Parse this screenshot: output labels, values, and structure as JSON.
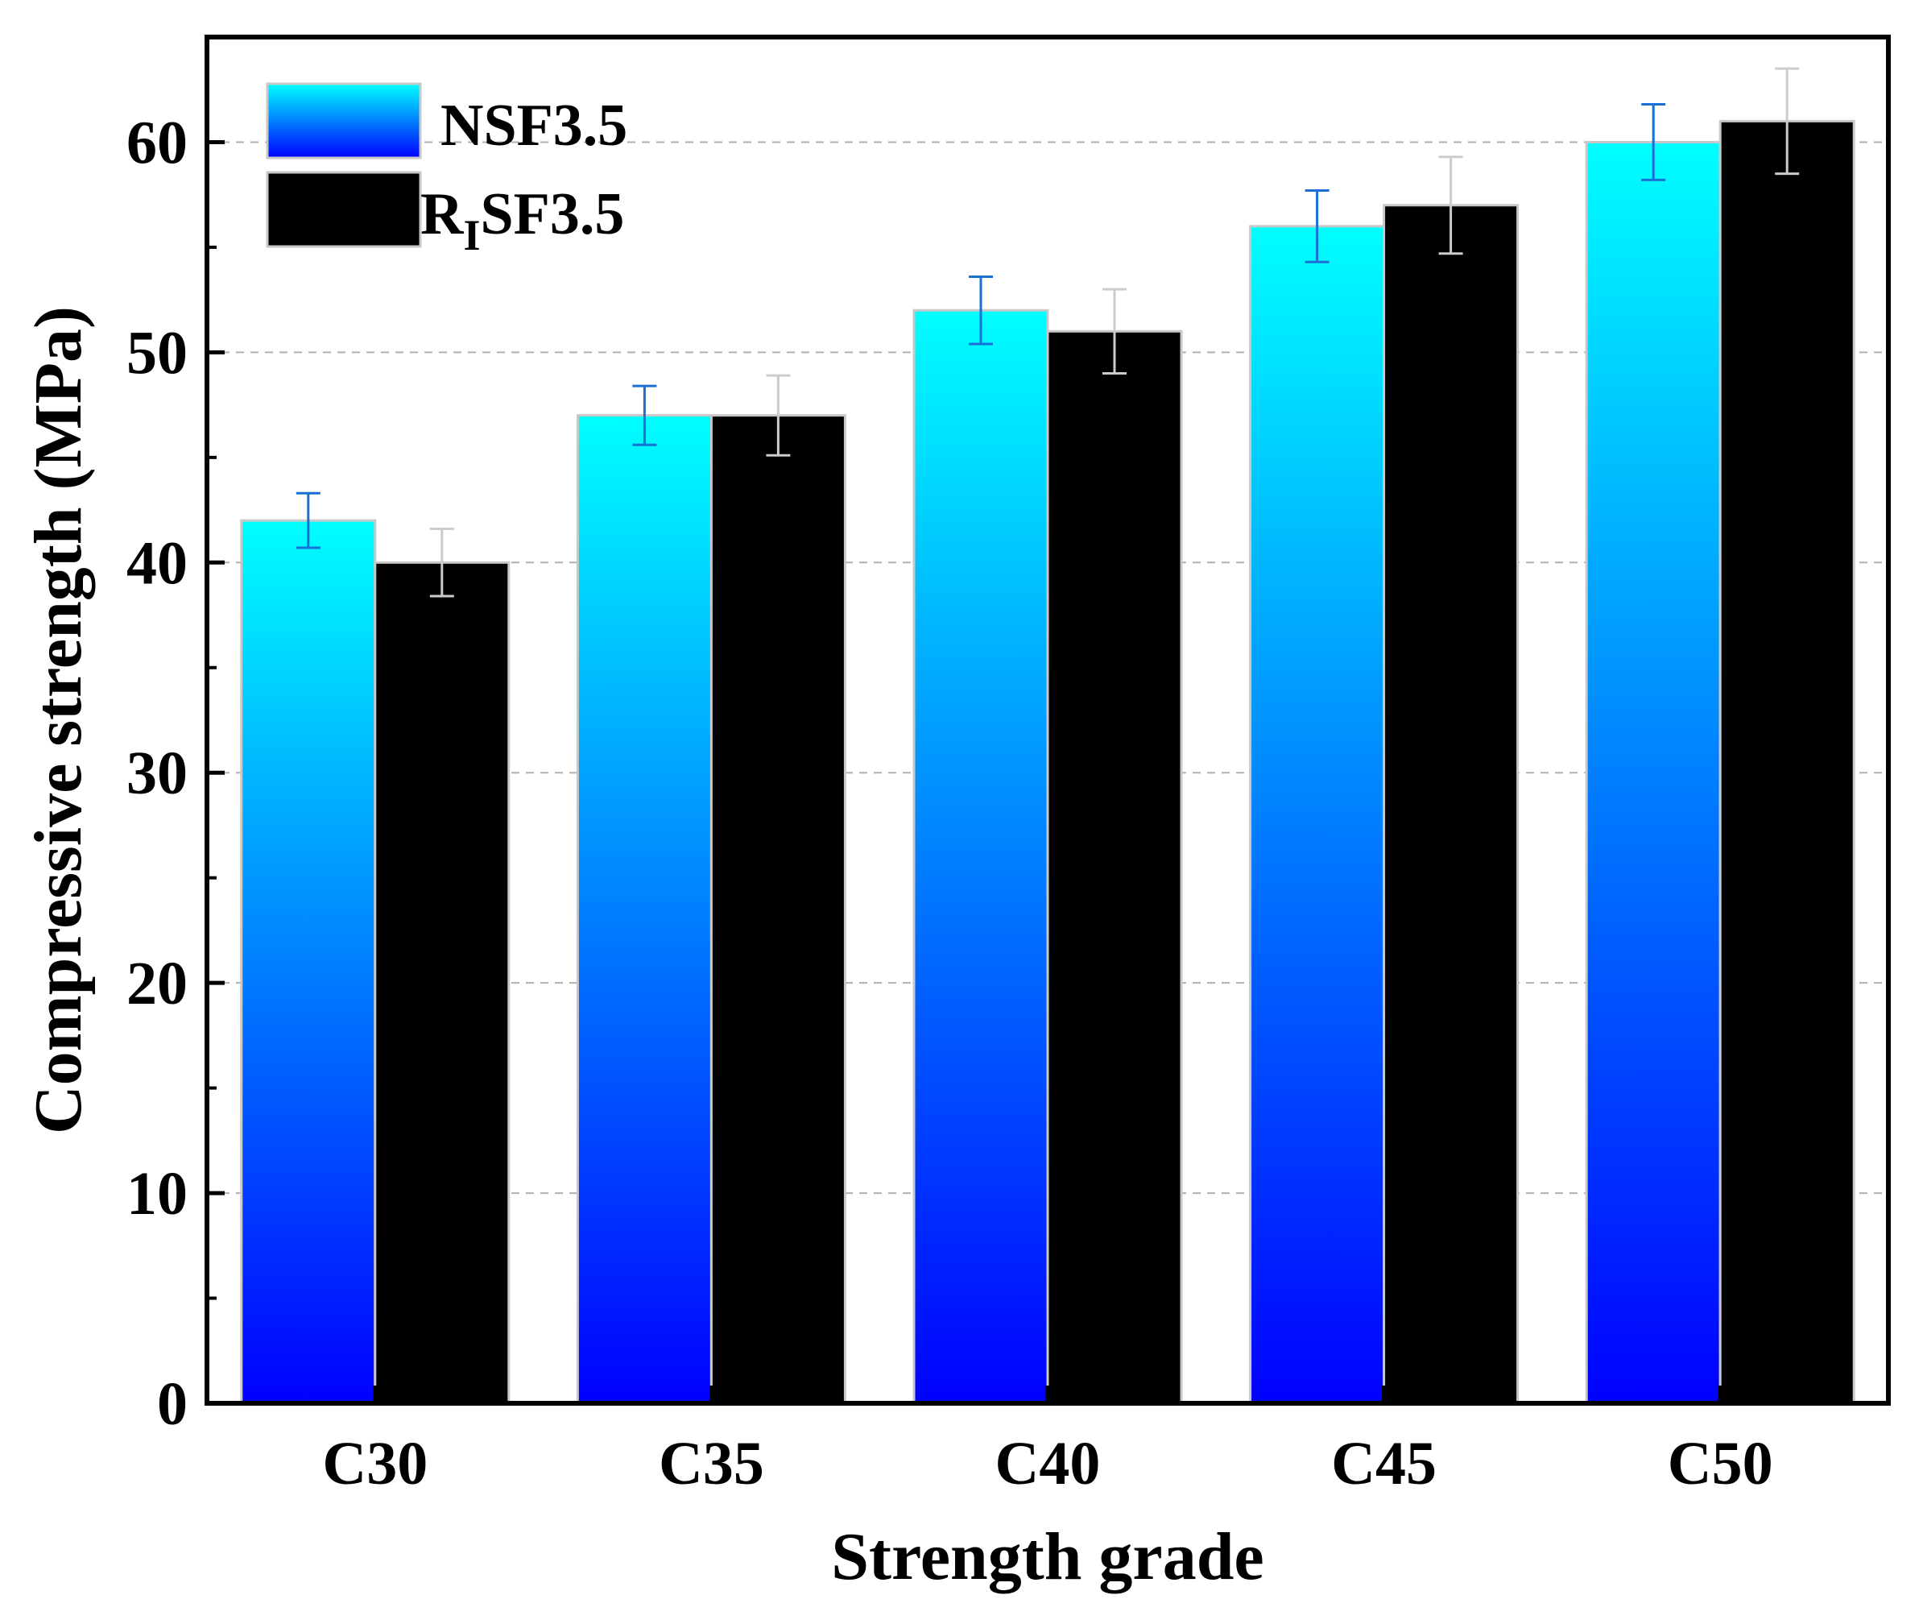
{
  "chart_data": {
    "type": "bar",
    "categories": [
      "C30",
      "C35",
      "C40",
      "C45",
      "C50"
    ],
    "series": [
      {
        "name": "NSF3.5",
        "values": [
          42,
          47,
          52,
          56,
          60
        ],
        "errors": [
          1.3,
          1.4,
          1.6,
          1.7,
          1.8
        ],
        "style": "cyan-to-blue gradient"
      },
      {
        "name": "RISF3.5",
        "name_parts": {
          "pre": "R",
          "sub": "I",
          "post": "SF3.5"
        },
        "values": [
          40,
          47,
          51,
          57,
          61
        ],
        "errors": [
          1.6,
          1.9,
          2.0,
          2.3,
          2.5
        ],
        "style": "black"
      }
    ],
    "xlabel": "Strength grade",
    "ylabel": "Compressive strength (MPa)",
    "ylim": [
      0,
      65
    ],
    "yticks": [
      0,
      10,
      20,
      30,
      40,
      50,
      60
    ],
    "grid": "horizontal dashed",
    "legend_position": "top-left",
    "colors": {
      "gradient_top": "#00ffff",
      "gradient_bottom": "#0000ff",
      "series2_fill": "#000000",
      "series1_error": "#1a6fd6",
      "series2_error": "#cccccc",
      "bar_edge": "#c8c8c8",
      "grid": "#b0b0b0"
    }
  }
}
